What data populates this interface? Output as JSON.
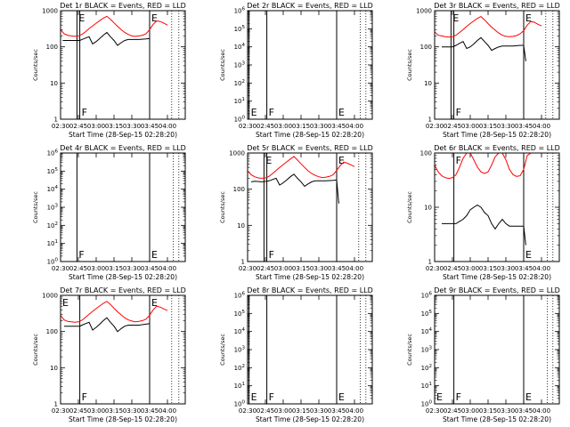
{
  "chart_data": [
    {
      "type": "line",
      "title": "Det 1r BLACK = Events, RED = LLD",
      "xlabel": "Start Time (28-Sep-15 02:28:20)",
      "ylabel": "Counts/sec",
      "yscale": "log",
      "ylim": [
        1,
        1000
      ],
      "yticks": [
        "1",
        "10",
        "100",
        "1000"
      ],
      "xticks": [
        "02:30",
        "02:45",
        "03:00",
        "03:15",
        "03:30",
        "03:45",
        "04:00"
      ],
      "xlim": [
        2.5,
        4.25
      ],
      "markers": [
        {
          "x": 2.73,
          "label": "E"
        },
        {
          "x": 2.77,
          "label": "F"
        },
        {
          "x": 3.75,
          "label": "E"
        }
      ],
      "dotted_x": [
        4.06,
        4.16
      ],
      "series": [
        {
          "name": "LLD",
          "color": "#ff0000",
          "x": [
            2.5,
            2.55,
            2.6,
            2.65,
            2.7,
            2.75,
            2.8,
            2.85,
            2.9,
            2.95,
            3.0,
            3.05,
            3.1,
            3.15,
            3.2,
            3.25,
            3.3,
            3.35,
            3.4,
            3.45,
            3.5,
            3.55,
            3.6,
            3.65,
            3.7,
            3.75,
            3.8,
            3.85,
            3.9,
            3.95,
            4.0
          ],
          "y": [
            300,
            230,
            210,
            200,
            195,
            200,
            220,
            260,
            320,
            380,
            450,
            530,
            620,
            700,
            580,
            460,
            370,
            300,
            250,
            220,
            200,
            195,
            200,
            210,
            230,
            300,
            420,
            520,
            500,
            450,
            400
          ]
        },
        {
          "name": "Events",
          "color": "#000000",
          "x": [
            2.53,
            2.6,
            2.7,
            2.77,
            2.8,
            2.85,
            2.9,
            2.95,
            3.0,
            3.05,
            3.1,
            3.15,
            3.2,
            3.25,
            3.3,
            3.35,
            3.4,
            3.45,
            3.5,
            3.55,
            3.6,
            3.7,
            3.75
          ],
          "y": [
            150,
            150,
            150,
            150,
            160,
            175,
            190,
            120,
            140,
            170,
            210,
            250,
            190,
            150,
            110,
            130,
            150,
            160,
            160,
            160,
            160,
            165,
            170
          ]
        }
      ]
    },
    {
      "type": "line",
      "title": "Det 2r BLACK = Events, RED = LLD",
      "xlabel": "Start Time (28-Sep-15 02:28:20)",
      "ylabel": "Counts/sec",
      "yscale": "log",
      "ylim": [
        1,
        1000000
      ],
      "yticks": [
        "10^0",
        "10^1",
        "10^2",
        "10^3",
        "10^4",
        "10^5",
        "10^6"
      ],
      "xticks": [
        "02:30",
        "02:45",
        "03:00",
        "03:15",
        "03:30",
        "03:45",
        "04:00"
      ],
      "xlim": [
        2.5,
        4.25
      ],
      "markers": [
        {
          "x": 2.52,
          "label": "E"
        },
        {
          "x": 2.77,
          "label": "F"
        },
        {
          "x": 3.75,
          "label": "E"
        }
      ],
      "dotted_x": [
        4.08,
        4.16
      ],
      "series": []
    },
    {
      "type": "line",
      "title": "Det 3r BLACK = Events, RED = LLD",
      "xlabel": "Start Time (28-Sep-15 02:28:20)",
      "ylabel": "Counts/sec",
      "yscale": "log",
      "ylim": [
        1,
        1000
      ],
      "yticks": [
        "1",
        "10",
        "100",
        "1000"
      ],
      "xticks": [
        "02:30",
        "02:45",
        "03:00",
        "03:15",
        "03:30",
        "03:45",
        "04:00"
      ],
      "xlim": [
        2.5,
        4.25
      ],
      "markers": [
        {
          "x": 2.73,
          "label": "E"
        },
        {
          "x": 2.77,
          "label": "F"
        },
        {
          "x": 3.75,
          "label": "E"
        }
      ],
      "dotted_x": [
        4.06,
        4.16
      ],
      "series": [
        {
          "name": "LLD",
          "color": "#ff0000",
          "x": [
            2.5,
            2.55,
            2.6,
            2.65,
            2.7,
            2.75,
            2.8,
            2.85,
            2.9,
            2.95,
            3.0,
            3.05,
            3.1,
            3.15,
            3.2,
            3.25,
            3.3,
            3.35,
            3.4,
            3.45,
            3.5,
            3.55,
            3.6,
            3.65,
            3.7,
            3.75,
            3.8,
            3.85,
            3.9,
            3.95,
            4.0
          ],
          "y": [
            260,
            210,
            200,
            190,
            185,
            190,
            210,
            250,
            300,
            370,
            440,
            520,
            610,
            690,
            560,
            440,
            350,
            290,
            240,
            210,
            195,
            190,
            195,
            205,
            230,
            280,
            400,
            500,
            480,
            420,
            380
          ]
        },
        {
          "name": "Events",
          "color": "#000000",
          "x": [
            2.6,
            2.7,
            2.75,
            2.8,
            2.85,
            2.9,
            2.95,
            3.0,
            3.05,
            3.1,
            3.15,
            3.2,
            3.25,
            3.3,
            3.35,
            3.4,
            3.45,
            3.5,
            3.6,
            3.7,
            3.75,
            3.78
          ],
          "y": [
            100,
            100,
            100,
            110,
            125,
            140,
            90,
            100,
            120,
            150,
            180,
            140,
            110,
            80,
            90,
            100,
            105,
            105,
            105,
            110,
            110,
            40
          ]
        }
      ]
    },
    {
      "type": "line",
      "title": "Det 4r BLACK = Events, RED = LLD",
      "xlabel": "Start Time (28-Sep-15 02:28:20)",
      "ylabel": "Counts/sec",
      "yscale": "log",
      "ylim": [
        1,
        1000000
      ],
      "yticks": [
        "10^0",
        "10^1",
        "10^2",
        "10^3",
        "10^4",
        "10^5",
        "10^6"
      ],
      "xticks": [
        "02:30",
        "02:45",
        "03:00",
        "03:15",
        "03:30",
        "03:45",
        "04:00"
      ],
      "xlim": [
        2.5,
        4.25
      ],
      "markers": [
        {
          "x": 2.73,
          "label": "F"
        },
        {
          "x": 3.75,
          "label": "E"
        }
      ],
      "dotted_x": [
        4.08,
        4.16
      ],
      "series": []
    },
    {
      "type": "line",
      "title": "Det 5r BLACK = Events, RED = LLD",
      "xlabel": "Start Time (28-Sep-15 02:28:20)",
      "ylabel": "Counts/sec",
      "yscale": "log",
      "ylim": [
        1,
        1000
      ],
      "yticks": [
        "1",
        "10",
        "100",
        "1000"
      ],
      "xticks": [
        "02:30",
        "02:45",
        "03:00",
        "03:15",
        "03:30",
        "03:45",
        "04:00"
      ],
      "xlim": [
        2.5,
        4.25
      ],
      "markers": [
        {
          "x": 2.73,
          "label": "E"
        },
        {
          "x": 2.77,
          "label": "F"
        },
        {
          "x": 3.75,
          "label": "E"
        }
      ],
      "dotted_x": [
        4.06,
        4.16
      ],
      "series": [
        {
          "name": "LLD",
          "color": "#ff0000",
          "x": [
            2.5,
            2.55,
            2.6,
            2.65,
            2.7,
            2.75,
            2.8,
            2.85,
            2.9,
            2.95,
            3.0,
            3.05,
            3.1,
            3.15,
            3.2,
            3.25,
            3.3,
            3.35,
            3.4,
            3.45,
            3.5,
            3.55,
            3.6,
            3.65,
            3.7,
            3.75,
            3.8,
            3.85,
            3.9,
            3.95,
            4.0
          ],
          "y": [
            320,
            250,
            220,
            205,
            200,
            205,
            225,
            270,
            330,
            400,
            480,
            570,
            680,
            800,
            640,
            500,
            400,
            320,
            270,
            240,
            220,
            210,
            215,
            225,
            250,
            330,
            450,
            560,
            520,
            470,
            420
          ]
        },
        {
          "name": "Events",
          "color": "#000000",
          "x": [
            2.55,
            2.6,
            2.7,
            2.77,
            2.8,
            2.85,
            2.9,
            2.95,
            3.0,
            3.05,
            3.1,
            3.15,
            3.2,
            3.25,
            3.3,
            3.35,
            3.4,
            3.45,
            3.5,
            3.55,
            3.6,
            3.7,
            3.75,
            3.78
          ],
          "y": [
            160,
            165,
            160,
            165,
            170,
            185,
            200,
            130,
            150,
            180,
            220,
            260,
            200,
            160,
            120,
            140,
            160,
            170,
            170,
            170,
            170,
            175,
            180,
            40
          ]
        }
      ]
    },
    {
      "type": "line",
      "title": "Det 6r BLACK = Events, RED = LLD",
      "xlabel": "Start Time (28-Sep-15 02:28:20)",
      "ylabel": "Counts/sec",
      "yscale": "log",
      "ylim": [
        1,
        100
      ],
      "yticks": [
        "1",
        "10",
        "100"
      ],
      "xticks": [
        "02:30",
        "02:45",
        "03:00",
        "03:15",
        "03:30",
        "03:45",
        "04:00"
      ],
      "xlim": [
        2.5,
        4.25
      ],
      "markers": [
        {
          "x": 2.77,
          "label": "F"
        },
        {
          "x": 3.75,
          "label": "E"
        }
      ],
      "dotted_x": [
        4.08,
        4.16
      ],
      "series": [
        {
          "name": "LLD",
          "color": "#ff0000",
          "x": [
            2.5,
            2.55,
            2.6,
            2.65,
            2.7,
            2.75,
            2.8,
            2.85,
            2.9,
            2.95,
            3.0,
            3.05,
            3.1,
            3.15,
            3.2,
            3.25,
            3.3,
            3.35,
            3.4,
            3.45,
            3.5,
            3.55,
            3.6,
            3.65,
            3.7,
            3.75,
            3.8,
            3.85,
            3.9
          ],
          "y": [
            60,
            45,
            38,
            35,
            34,
            35,
            40,
            55,
            80,
            110,
            100,
            75,
            55,
            45,
            42,
            45,
            60,
            85,
            110,
            100,
            75,
            50,
            40,
            37,
            38,
            50,
            90,
            120,
            110
          ]
        },
        {
          "name": "Events",
          "color": "#000000",
          "x": [
            2.6,
            2.65,
            2.7,
            2.75,
            2.8,
            2.85,
            2.9,
            2.95,
            3.0,
            3.05,
            3.1,
            3.15,
            3.2,
            3.25,
            3.3,
            3.35,
            3.4,
            3.45,
            3.5,
            3.55,
            3.6,
            3.65,
            3.7,
            3.75,
            3.78
          ],
          "y": [
            5,
            5,
            5,
            5,
            5,
            5.5,
            6,
            7,
            9,
            10,
            11,
            10,
            8,
            7,
            5,
            4,
            5,
            6,
            5,
            4.5,
            4.5,
            4.5,
            4.5,
            4.5,
            2
          ]
        }
      ]
    },
    {
      "type": "line",
      "title": "Det 7r BLACK = Events, RED = LLD",
      "xlabel": "Start Time (28-Sep-15 02:28:20)",
      "ylabel": "Counts/sec",
      "yscale": "log",
      "ylim": [
        1,
        1000
      ],
      "yticks": [
        "1",
        "10",
        "100",
        "1000"
      ],
      "xticks": [
        "02:30",
        "02:45",
        "03:00",
        "03:15",
        "03:30",
        "03:45",
        "04:00"
      ],
      "xlim": [
        2.5,
        4.25
      ],
      "markers": [
        {
          "x": 2.5,
          "label": "E"
        },
        {
          "x": 2.77,
          "label": "F"
        },
        {
          "x": 3.75,
          "label": "E"
        }
      ],
      "dotted_x": [
        4.06,
        4.16
      ],
      "series": [
        {
          "name": "LLD",
          "color": "#ff0000",
          "x": [
            2.5,
            2.55,
            2.6,
            2.65,
            2.7,
            2.75,
            2.8,
            2.85,
            2.9,
            2.95,
            3.0,
            3.05,
            3.1,
            3.15,
            3.2,
            3.25,
            3.3,
            3.35,
            3.4,
            3.45,
            3.5,
            3.55,
            3.6,
            3.65,
            3.7,
            3.75,
            3.8,
            3.85,
            3.9,
            3.95,
            4.0
          ],
          "y": [
            280,
            210,
            190,
            185,
            180,
            185,
            205,
            245,
            300,
            360,
            430,
            510,
            600,
            680,
            560,
            440,
            350,
            290,
            240,
            210,
            195,
            185,
            190,
            200,
            220,
            280,
            400,
            500,
            470,
            420,
            380
          ]
        },
        {
          "name": "Events",
          "color": "#000000",
          "x": [
            2.55,
            2.6,
            2.7,
            2.77,
            2.8,
            2.85,
            2.9,
            2.95,
            3.0,
            3.05,
            3.1,
            3.15,
            3.2,
            3.25,
            3.3,
            3.35,
            3.4,
            3.45,
            3.5,
            3.55,
            3.6,
            3.7,
            3.75
          ],
          "y": [
            140,
            140,
            140,
            140,
            150,
            165,
            180,
            110,
            130,
            160,
            200,
            240,
            180,
            140,
            100,
            120,
            140,
            150,
            150,
            150,
            150,
            160,
            165
          ]
        }
      ]
    },
    {
      "type": "line",
      "title": "Det 8r BLACK = Events, RED = LLD",
      "xlabel": "Start Time (28-Sep-15 02:28:20)",
      "ylabel": "Counts/sec",
      "yscale": "log",
      "ylim": [
        1,
        1000000
      ],
      "yticks": [
        "10^0",
        "10^1",
        "10^2",
        "10^3",
        "10^4",
        "10^5",
        "10^6"
      ],
      "xticks": [
        "02:30",
        "02:45",
        "03:00",
        "03:15",
        "03:30",
        "03:45",
        "04:00"
      ],
      "xlim": [
        2.5,
        4.25
      ],
      "markers": [
        {
          "x": 2.52,
          "label": "E"
        },
        {
          "x": 2.77,
          "label": "F"
        },
        {
          "x": 3.75,
          "label": "E"
        }
      ],
      "dotted_x": [
        4.08,
        4.16
      ],
      "series": []
    },
    {
      "type": "line",
      "title": "Det 9r BLACK = Events, RED = LLD",
      "xlabel": "Start Time (28-Sep-15 02:28:20)",
      "ylabel": "Counts/sec",
      "yscale": "log",
      "ylim": [
        1,
        1000000
      ],
      "yticks": [
        "10^0",
        "10^1",
        "10^2",
        "10^3",
        "10^4",
        "10^5",
        "10^6"
      ],
      "xticks": [
        "02:30",
        "02:45",
        "03:00",
        "03:15",
        "03:30",
        "03:45",
        "04:00"
      ],
      "xlim": [
        2.5,
        4.25
      ],
      "markers": [
        {
          "x": 2.5,
          "label": "E"
        },
        {
          "x": 2.77,
          "label": "F"
        },
        {
          "x": 3.75,
          "label": "E"
        }
      ],
      "dotted_x": [
        4.08,
        4.16
      ],
      "series": []
    }
  ]
}
